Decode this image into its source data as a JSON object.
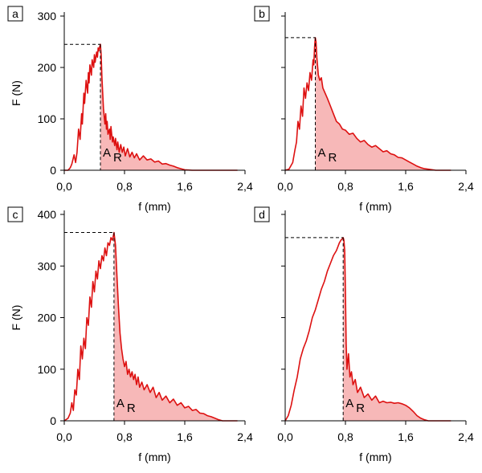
{
  "figure": {
    "colors": {
      "curve": "#dd1111",
      "fill": "#f7b8b8",
      "axis": "#000000",
      "dashed": "#000000",
      "background": "#ffffff"
    }
  },
  "chart_data": [
    {
      "type": "area",
      "panel_label": "a",
      "xlabel": "f (mm)",
      "ylabel": "F (N)",
      "xlim": [
        0,
        2.4
      ],
      "ylim": [
        0,
        300
      ],
      "x_ticks": [
        0,
        0.8,
        1.6,
        2.4
      ],
      "x_tick_labels": [
        "0,0",
        "0,8",
        "1,6",
        "2,4"
      ],
      "y_ticks": [
        0,
        100,
        200,
        300
      ],
      "y_tick_labels": [
        "0",
        "100",
        "200",
        "300"
      ],
      "show_x_title": true,
      "show_y_title": true,
      "show_y_tick_labels": true,
      "peak": {
        "x": 0.48,
        "y": 245
      },
      "shaded_from_x": 0.48,
      "area_label": {
        "main": "A",
        "sub": "R"
      },
      "series": [
        {
          "x": [
            0.0,
            0.05,
            0.08,
            0.1,
            0.13,
            0.15,
            0.17,
            0.19,
            0.21,
            0.23,
            0.24,
            0.26,
            0.27,
            0.29,
            0.31,
            0.32,
            0.33,
            0.34,
            0.36,
            0.37,
            0.39,
            0.4,
            0.41,
            0.43,
            0.44,
            0.45,
            0.46,
            0.47,
            0.48,
            0.49,
            0.5,
            0.52,
            0.54,
            0.55,
            0.56,
            0.57,
            0.58,
            0.6,
            0.61,
            0.62,
            0.64,
            0.65,
            0.67,
            0.68,
            0.7,
            0.71,
            0.73,
            0.75,
            0.77,
            0.79,
            0.81,
            0.84,
            0.87,
            0.9,
            0.93,
            0.96,
            1.0,
            1.05,
            1.1,
            1.15,
            1.2,
            1.25,
            1.3,
            1.35,
            1.4,
            1.45,
            1.5,
            1.55,
            1.6,
            1.7,
            1.9,
            2.3
          ],
          "y": [
            0,
            0,
            5,
            12,
            30,
            15,
            35,
            80,
            60,
            110,
            90,
            150,
            130,
            175,
            150,
            190,
            170,
            205,
            185,
            215,
            200,
            225,
            210,
            230,
            220,
            238,
            232,
            240,
            245,
            225,
            180,
            120,
            90,
            110,
            80,
            95,
            70,
            80,
            60,
            85,
            55,
            65,
            48,
            62,
            40,
            55,
            35,
            50,
            35,
            45,
            28,
            42,
            26,
            35,
            24,
            32,
            20,
            28,
            20,
            22,
            16,
            18,
            12,
            13,
            10,
            8,
            5,
            3,
            1,
            0,
            0,
            0
          ]
        }
      ]
    },
    {
      "type": "area",
      "panel_label": "b",
      "xlabel": "f (mm)",
      "ylabel": "",
      "xlim": [
        0,
        2.4
      ],
      "ylim": [
        0,
        300
      ],
      "x_ticks": [
        0,
        0.8,
        1.6,
        2.4
      ],
      "x_tick_labels": [
        "0,0",
        "0,8",
        "1,6",
        "2,4"
      ],
      "y_ticks": [
        0,
        100,
        200,
        300
      ],
      "y_tick_labels": [
        "",
        "",
        "",
        ""
      ],
      "show_x_title": true,
      "show_y_title": false,
      "show_y_tick_labels": false,
      "peak": {
        "x": 0.4,
        "y": 258
      },
      "shaded_from_x": 0.4,
      "area_label": {
        "main": "A",
        "sub": "R"
      },
      "series": [
        {
          "x": [
            0.0,
            0.05,
            0.1,
            0.13,
            0.15,
            0.17,
            0.19,
            0.21,
            0.23,
            0.25,
            0.27,
            0.29,
            0.31,
            0.33,
            0.35,
            0.37,
            0.38,
            0.39,
            0.4,
            0.41,
            0.42,
            0.44,
            0.46,
            0.48,
            0.5,
            0.53,
            0.56,
            0.6,
            0.64,
            0.68,
            0.72,
            0.76,
            0.8,
            0.85,
            0.9,
            0.95,
            1.0,
            1.05,
            1.1,
            1.15,
            1.2,
            1.25,
            1.3,
            1.35,
            1.4,
            1.45,
            1.5,
            1.55,
            1.6,
            1.65,
            1.7,
            1.75,
            1.8,
            1.85,
            1.9,
            2.0,
            2.2
          ],
          "y": [
            0,
            2,
            15,
            40,
            55,
            95,
            80,
            125,
            105,
            160,
            140,
            170,
            155,
            190,
            175,
            215,
            205,
            240,
            258,
            250,
            220,
            185,
            175,
            180,
            160,
            150,
            140,
            125,
            110,
            95,
            90,
            80,
            78,
            70,
            72,
            62,
            55,
            58,
            50,
            45,
            48,
            42,
            36,
            38,
            32,
            30,
            25,
            24,
            20,
            16,
            12,
            8,
            5,
            3,
            2,
            0,
            0
          ]
        }
      ]
    },
    {
      "type": "area",
      "panel_label": "c",
      "xlabel": "f (mm)",
      "ylabel": "F (N)",
      "xlim": [
        0,
        2.4
      ],
      "ylim": [
        0,
        400
      ],
      "x_ticks": [
        0,
        0.8,
        1.6,
        2.4
      ],
      "x_tick_labels": [
        "0,0",
        "0,8",
        "1,6",
        "2,4"
      ],
      "y_ticks": [
        0,
        100,
        200,
        300,
        400
      ],
      "y_tick_labels": [
        "0",
        "100",
        "200",
        "300",
        "400"
      ],
      "show_x_title": true,
      "show_y_title": true,
      "show_y_tick_labels": true,
      "peak": {
        "x": 0.66,
        "y": 365
      },
      "shaded_from_x": 0.66,
      "area_label": {
        "main": "A",
        "sub": "R"
      },
      "series": [
        {
          "x": [
            0.0,
            0.05,
            0.08,
            0.1,
            0.12,
            0.14,
            0.16,
            0.18,
            0.2,
            0.22,
            0.24,
            0.26,
            0.28,
            0.3,
            0.32,
            0.34,
            0.36,
            0.38,
            0.4,
            0.42,
            0.44,
            0.46,
            0.48,
            0.5,
            0.52,
            0.54,
            0.56,
            0.58,
            0.6,
            0.62,
            0.64,
            0.66,
            0.68,
            0.7,
            0.72,
            0.74,
            0.76,
            0.78,
            0.8,
            0.82,
            0.84,
            0.86,
            0.88,
            0.9,
            0.92,
            0.94,
            0.96,
            0.98,
            1.0,
            1.03,
            1.06,
            1.1,
            1.14,
            1.18,
            1.22,
            1.26,
            1.3,
            1.35,
            1.4,
            1.45,
            1.5,
            1.55,
            1.6,
            1.65,
            1.7,
            1.75,
            1.8,
            1.85,
            1.9,
            1.95,
            2.0,
            2.05,
            2.1,
            2.2,
            2.3
          ],
          "y": [
            0,
            5,
            15,
            35,
            20,
            60,
            50,
            100,
            80,
            145,
            120,
            160,
            140,
            200,
            185,
            240,
            220,
            270,
            250,
            290,
            275,
            310,
            295,
            320,
            310,
            335,
            320,
            345,
            340,
            355,
            350,
            365,
            340,
            280,
            220,
            170,
            140,
            120,
            105,
            115,
            90,
            100,
            85,
            95,
            80,
            90,
            70,
            85,
            65,
            75,
            60,
            70,
            55,
            65,
            45,
            55,
            40,
            48,
            35,
            42,
            30,
            35,
            25,
            28,
            20,
            22,
            15,
            14,
            10,
            8,
            5,
            2,
            0,
            0,
            0
          ]
        }
      ]
    },
    {
      "type": "area",
      "panel_label": "d",
      "xlabel": "f (mm)",
      "ylabel": "",
      "xlim": [
        0,
        2.4
      ],
      "ylim": [
        0,
        400
      ],
      "x_ticks": [
        0,
        0.8,
        1.6,
        2.4
      ],
      "x_tick_labels": [
        "0,0",
        "0,8",
        "1,6",
        "2,4"
      ],
      "y_ticks": [
        0,
        100,
        200,
        300,
        400
      ],
      "y_tick_labels": [
        "",
        "",
        "",
        "",
        ""
      ],
      "show_x_title": true,
      "show_y_title": false,
      "show_y_tick_labels": false,
      "peak": {
        "x": 0.77,
        "y": 355
      },
      "shaded_from_x": 0.77,
      "area_label": {
        "main": "A",
        "sub": "R"
      },
      "series": [
        {
          "x": [
            0.0,
            0.04,
            0.08,
            0.12,
            0.16,
            0.2,
            0.24,
            0.28,
            0.32,
            0.36,
            0.4,
            0.44,
            0.48,
            0.52,
            0.56,
            0.6,
            0.64,
            0.68,
            0.72,
            0.74,
            0.76,
            0.77,
            0.78,
            0.79,
            0.8,
            0.81,
            0.82,
            0.84,
            0.86,
            0.88,
            0.9,
            0.93,
            0.96,
            1.0,
            1.05,
            1.1,
            1.15,
            1.2,
            1.25,
            1.3,
            1.35,
            1.4,
            1.45,
            1.5,
            1.55,
            1.6,
            1.65,
            1.7,
            1.75,
            1.8,
            1.85,
            1.9,
            2.0,
            2.2
          ],
          "y": [
            0,
            10,
            30,
            60,
            85,
            120,
            140,
            155,
            175,
            200,
            215,
            235,
            255,
            270,
            290,
            305,
            320,
            330,
            345,
            350,
            353,
            355,
            350,
            330,
            250,
            150,
            100,
            130,
            85,
            95,
            70,
            80,
            55,
            65,
            45,
            52,
            40,
            48,
            35,
            38,
            35,
            36,
            34,
            35,
            33,
            30,
            25,
            18,
            10,
            5,
            2,
            0,
            0,
            0
          ]
        }
      ]
    }
  ]
}
